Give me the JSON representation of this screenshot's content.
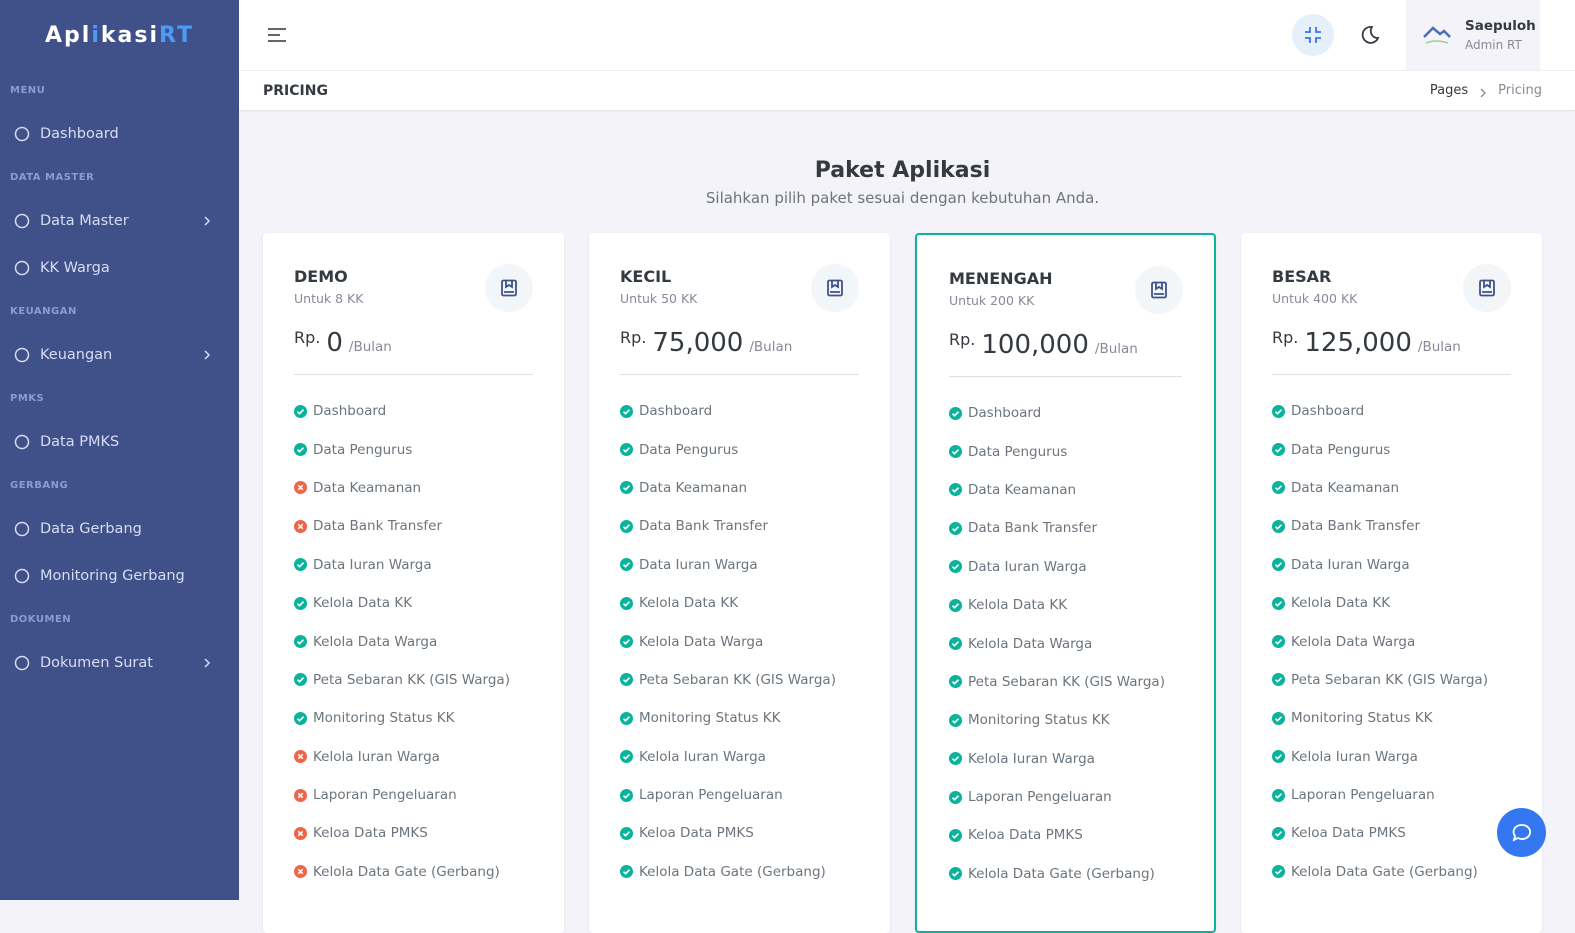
{
  "sidebar": {
    "logo": [
      "Apl",
      "i",
      "kasi",
      "RT"
    ],
    "sections": [
      {
        "heading": "MENU",
        "items": [
          {
            "label": "Dashboard",
            "has_submenu": false
          }
        ]
      },
      {
        "heading": "DATA MASTER",
        "items": [
          {
            "label": "Data Master",
            "has_submenu": true
          },
          {
            "label": "KK Warga",
            "has_submenu": false
          }
        ]
      },
      {
        "heading": "KEUANGAN",
        "items": [
          {
            "label": "Keuangan",
            "has_submenu": true
          }
        ]
      },
      {
        "heading": "PMKS",
        "items": [
          {
            "label": "Data PMKS",
            "has_submenu": false
          }
        ]
      },
      {
        "heading": "GERBANG",
        "items": [
          {
            "label": "Data Gerbang",
            "has_submenu": false
          },
          {
            "label": "Monitoring Gerbang",
            "has_submenu": false
          }
        ]
      },
      {
        "heading": "DOKUMEN",
        "items": [
          {
            "label": "Dokumen Surat",
            "has_submenu": true
          }
        ]
      }
    ]
  },
  "header": {
    "user_name": "Saepuloh",
    "user_role": "Admin RT"
  },
  "breadcrumb": {
    "page_title": "PRICING",
    "trail": [
      "Pages",
      "Pricing"
    ]
  },
  "pricing": {
    "title": "Paket Aplikasi",
    "subtitle": "Silahkan pilih paket sesuai dengan kebutuhan Anda.",
    "plans": [
      {
        "name": "DEMO",
        "quota": "Untuk 8 KK",
        "currency": "Rp.",
        "price": "0",
        "period": "/Bulan",
        "featured": false,
        "features": [
          {
            "label": "Dashboard",
            "included": true
          },
          {
            "label": "Data Pengurus",
            "included": true
          },
          {
            "label": "Data Keamanan",
            "included": false
          },
          {
            "label": "Data Bank Transfer",
            "included": false
          },
          {
            "label": "Data Iuran Warga",
            "included": true
          },
          {
            "label": "Kelola Data KK",
            "included": true
          },
          {
            "label": "Kelola Data Warga",
            "included": true
          },
          {
            "label": "Peta Sebaran KK (GIS Warga)",
            "included": true
          },
          {
            "label": "Monitoring Status KK",
            "included": true
          },
          {
            "label": "Kelola Iuran Warga",
            "included": false
          },
          {
            "label": "Laporan Pengeluaran",
            "included": false
          },
          {
            "label": "Keloa Data PMKS",
            "included": false
          },
          {
            "label": "Kelola Data Gate (Gerbang)",
            "included": false
          }
        ]
      },
      {
        "name": "KECIL",
        "quota": "Untuk 50 KK",
        "currency": "Rp.",
        "price": "75,000",
        "period": "/Bulan",
        "featured": false,
        "features": [
          {
            "label": "Dashboard",
            "included": true
          },
          {
            "label": "Data Pengurus",
            "included": true
          },
          {
            "label": "Data Keamanan",
            "included": true
          },
          {
            "label": "Data Bank Transfer",
            "included": true
          },
          {
            "label": "Data Iuran Warga",
            "included": true
          },
          {
            "label": "Kelola Data KK",
            "included": true
          },
          {
            "label": "Kelola Data Warga",
            "included": true
          },
          {
            "label": "Peta Sebaran KK (GIS Warga)",
            "included": true
          },
          {
            "label": "Monitoring Status KK",
            "included": true
          },
          {
            "label": "Kelola Iuran Warga",
            "included": true
          },
          {
            "label": "Laporan Pengeluaran",
            "included": true
          },
          {
            "label": "Keloa Data PMKS",
            "included": true
          },
          {
            "label": "Kelola Data Gate (Gerbang)",
            "included": true
          }
        ]
      },
      {
        "name": "MENENGAH",
        "quota": "Untuk 200 KK",
        "currency": "Rp.",
        "price": "100,000",
        "period": "/Bulan",
        "featured": true,
        "features": [
          {
            "label": "Dashboard",
            "included": true
          },
          {
            "label": "Data Pengurus",
            "included": true
          },
          {
            "label": "Data Keamanan",
            "included": true
          },
          {
            "label": "Data Bank Transfer",
            "included": true
          },
          {
            "label": "Data Iuran Warga",
            "included": true
          },
          {
            "label": "Kelola Data KK",
            "included": true
          },
          {
            "label": "Kelola Data Warga",
            "included": true
          },
          {
            "label": "Peta Sebaran KK (GIS Warga)",
            "included": true
          },
          {
            "label": "Monitoring Status KK",
            "included": true
          },
          {
            "label": "Kelola Iuran Warga",
            "included": true
          },
          {
            "label": "Laporan Pengeluaran",
            "included": true
          },
          {
            "label": "Keloa Data PMKS",
            "included": true
          },
          {
            "label": "Kelola Data Gate (Gerbang)",
            "included": true
          }
        ]
      },
      {
        "name": "BESAR",
        "quota": "Untuk 400 KK",
        "currency": "Rp.",
        "price": "125,000",
        "period": "/Bulan",
        "featured": false,
        "features": [
          {
            "label": "Dashboard",
            "included": true
          },
          {
            "label": "Data Pengurus",
            "included": true
          },
          {
            "label": "Data Keamanan",
            "included": true
          },
          {
            "label": "Data Bank Transfer",
            "included": true
          },
          {
            "label": "Data Iuran Warga",
            "included": true
          },
          {
            "label": "Kelola Data KK",
            "included": true
          },
          {
            "label": "Kelola Data Warga",
            "included": true
          },
          {
            "label": "Peta Sebaran KK (GIS Warga)",
            "included": true
          },
          {
            "label": "Monitoring Status KK",
            "included": true
          },
          {
            "label": "Kelola Iuran Warga",
            "included": true
          },
          {
            "label": "Laporan Pengeluaran",
            "included": true
          },
          {
            "label": "Keloa Data PMKS",
            "included": true
          },
          {
            "label": "Kelola Data Gate (Gerbang)",
            "included": true
          }
        ]
      }
    ]
  }
}
